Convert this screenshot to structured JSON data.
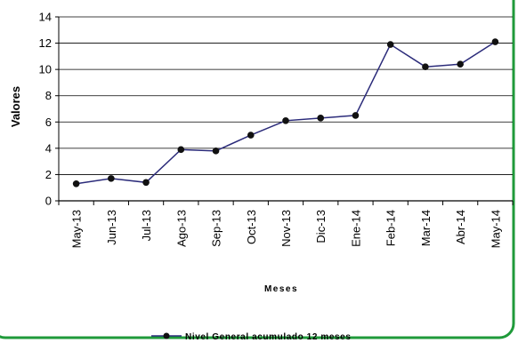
{
  "colors": {
    "border": "#1f9a3a",
    "series": "#2b2b7a",
    "marker": "#111111",
    "grid": "#000000"
  },
  "chart_data": {
    "type": "line",
    "categories": [
      "May-13",
      "Jun-13",
      "Jul-13",
      "Ago-13",
      "Sep-13",
      "Oct-13",
      "Nov-13",
      "Dic-13",
      "Ene-14",
      "Feb-14",
      "Mar-14",
      "Abr-14",
      "May-14"
    ],
    "series": [
      {
        "name": "Nivel General acumulado 12 meses",
        "values": [
          1.3,
          1.7,
          1.4,
          3.9,
          3.8,
          5.0,
          6.1,
          6.3,
          6.5,
          11.9,
          10.2,
          10.4,
          12.1
        ]
      }
    ],
    "title": "",
    "xlabel": "Meses",
    "ylabel": "Valores",
    "ylim": [
      0,
      14
    ],
    "yticks": [
      "0",
      "2",
      "4",
      "6",
      "8",
      "10",
      "12",
      "14"
    ],
    "grid": true,
    "legend_position": "bottom-center"
  }
}
